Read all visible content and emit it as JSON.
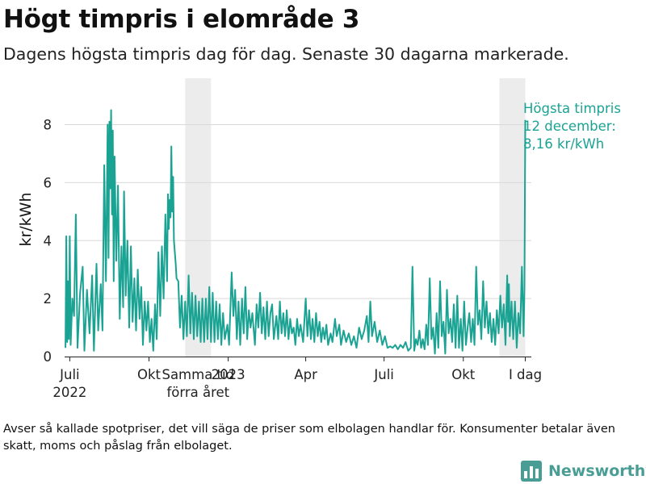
{
  "title": "Högt timpris i elområde 3",
  "subtitle": "Dagens högsta timpris dag för dag. Senaste 30 dagarna markerade.",
  "footnote": "Avser så kallade spotpriser, det vill säga de priser som elbolagen handlar för. Konsumenter betalar även skatt, moms och påslag från elbolaget.",
  "brand": {
    "name": "Newsworthy",
    "icon": "bar-chart-logo-icon"
  },
  "colors": {
    "line": "#1aa393",
    "highlight": "#ececec",
    "grid": "#d9d9d9",
    "brand": "#4a9d95"
  },
  "chart_data": {
    "type": "line",
    "ylabel": "kr/kWh",
    "ylim": [
      0,
      9.6
    ],
    "yticks": [
      0,
      2,
      4,
      6,
      8
    ],
    "grid": true,
    "xlim": [
      "2022-06-25",
      "2023-12-19"
    ],
    "xticks": [
      {
        "date": "2022-07-01",
        "label": "Juli",
        "sublabel": "2022"
      },
      {
        "date": "2022-10-01",
        "label": "Okt"
      },
      {
        "date": "2023-01-01",
        "label": "2023"
      },
      {
        "date": "2023-04-01",
        "label": "Apr"
      },
      {
        "date": "2023-07-01",
        "label": "Juli"
      },
      {
        "date": "2023-10-01",
        "label": "Okt"
      },
      {
        "date": "2023-12-12",
        "label": "I dag"
      }
    ],
    "highlight_periods": [
      {
        "start": "2022-11-12",
        "end": "2022-12-12",
        "label": "Samma tid",
        "sublabel": "förra året"
      },
      {
        "start": "2023-11-12",
        "end": "2023-12-12"
      }
    ],
    "annotation": {
      "date": "2023-12-12",
      "lines": [
        "Högsta timpris",
        "12 december:",
        "8,16 kr/kWh"
      ]
    },
    "series": [
      {
        "points": [
          [
            "2022-06-26",
            0.3
          ],
          [
            "2022-06-27",
            4.15
          ],
          [
            "2022-06-28",
            0.5
          ],
          [
            "2022-06-29",
            2.6
          ],
          [
            "2022-06-30",
            0.6
          ],
          [
            "2022-07-01",
            4.15
          ],
          [
            "2022-07-02",
            0.4
          ],
          [
            "2022-07-04",
            2.0
          ],
          [
            "2022-07-06",
            1.4
          ],
          [
            "2022-07-08",
            4.9
          ],
          [
            "2022-07-10",
            0.3
          ],
          [
            "2022-07-13",
            2.2
          ],
          [
            "2022-07-16",
            3.1
          ],
          [
            "2022-07-18",
            0.2
          ],
          [
            "2022-07-21",
            2.3
          ],
          [
            "2022-07-24",
            0.8
          ],
          [
            "2022-07-27",
            2.8
          ],
          [
            "2022-07-29",
            0.2
          ],
          [
            "2022-08-01",
            3.2
          ],
          [
            "2022-08-03",
            0.9
          ],
          [
            "2022-08-06",
            2.5
          ],
          [
            "2022-08-08",
            0.9
          ],
          [
            "2022-08-10",
            6.6
          ],
          [
            "2022-08-12",
            2.6
          ],
          [
            "2022-08-14",
            8.0
          ],
          [
            "2022-08-15",
            3.4
          ],
          [
            "2022-08-16",
            8.1
          ],
          [
            "2022-08-17",
            5.8
          ],
          [
            "2022-08-18",
            8.5
          ],
          [
            "2022-08-19",
            4.9
          ],
          [
            "2022-08-20",
            7.8
          ],
          [
            "2022-08-21",
            2.6
          ],
          [
            "2022-08-22",
            6.9
          ],
          [
            "2022-08-24",
            3.3
          ],
          [
            "2022-08-26",
            5.9
          ],
          [
            "2022-08-28",
            1.3
          ],
          [
            "2022-08-30",
            3.8
          ],
          [
            "2022-09-01",
            1.7
          ],
          [
            "2022-09-02",
            5.7
          ],
          [
            "2022-09-04",
            2.1
          ],
          [
            "2022-09-06",
            4.0
          ],
          [
            "2022-09-08",
            1.0
          ],
          [
            "2022-09-10",
            3.8
          ],
          [
            "2022-09-12",
            1.2
          ],
          [
            "2022-09-14",
            2.7
          ],
          [
            "2022-09-16",
            0.9
          ],
          [
            "2022-09-18",
            3.0
          ],
          [
            "2022-09-20",
            1.3
          ],
          [
            "2022-09-22",
            2.4
          ],
          [
            "2022-09-24",
            0.4
          ],
          [
            "2022-09-26",
            1.9
          ],
          [
            "2022-09-28",
            0.9
          ],
          [
            "2022-09-30",
            1.9
          ],
          [
            "2022-10-02",
            0.5
          ],
          [
            "2022-10-04",
            1.3
          ],
          [
            "2022-10-06",
            0.2
          ],
          [
            "2022-10-08",
            1.8
          ],
          [
            "2022-10-10",
            0.6
          ],
          [
            "2022-10-12",
            3.6
          ],
          [
            "2022-10-14",
            1.4
          ],
          [
            "2022-10-16",
            3.8
          ],
          [
            "2022-10-18",
            2.0
          ],
          [
            "2022-10-20",
            4.9
          ],
          [
            "2022-10-22",
            2.6
          ],
          [
            "2022-10-23",
            5.6
          ],
          [
            "2022-10-24",
            4.4
          ],
          [
            "2022-10-25",
            5.4
          ],
          [
            "2022-10-26",
            4.8
          ],
          [
            "2022-10-27",
            7.25
          ],
          [
            "2022-10-28",
            5.0
          ],
          [
            "2022-10-29",
            6.2
          ],
          [
            "2022-10-30",
            4.0
          ],
          [
            "2022-11-01",
            3.2
          ],
          [
            "2022-11-02",
            2.7
          ],
          [
            "2022-11-04",
            2.6
          ],
          [
            "2022-11-06",
            1.0
          ],
          [
            "2022-11-08",
            2.1
          ],
          [
            "2022-11-10",
            0.6
          ],
          [
            "2022-11-12",
            1.9
          ],
          [
            "2022-11-14",
            0.7
          ],
          [
            "2022-11-16",
            2.8
          ],
          [
            "2022-11-18",
            0.8
          ],
          [
            "2022-11-20",
            2.2
          ],
          [
            "2022-11-22",
            0.6
          ],
          [
            "2022-11-24",
            2.1
          ],
          [
            "2022-11-26",
            0.7
          ],
          [
            "2022-11-28",
            1.9
          ],
          [
            "2022-11-30",
            0.5
          ],
          [
            "2022-12-02",
            2.0
          ],
          [
            "2022-12-04",
            0.5
          ],
          [
            "2022-12-06",
            2.0
          ],
          [
            "2022-12-08",
            0.6
          ],
          [
            "2022-12-10",
            2.4
          ],
          [
            "2022-12-12",
            0.5
          ],
          [
            "2022-12-14",
            2.2
          ],
          [
            "2022-12-16",
            0.5
          ],
          [
            "2022-12-18",
            1.9
          ],
          [
            "2022-12-20",
            0.6
          ],
          [
            "2022-12-22",
            1.8
          ],
          [
            "2022-12-24",
            0.4
          ],
          [
            "2022-12-26",
            1.5
          ],
          [
            "2022-12-28",
            0.6
          ],
          [
            "2022-12-31",
            1.1
          ],
          [
            "2023-01-02",
            0.4
          ],
          [
            "2023-01-05",
            2.9
          ],
          [
            "2023-01-07",
            1.4
          ],
          [
            "2023-01-09",
            2.3
          ],
          [
            "2023-01-11",
            0.6
          ],
          [
            "2023-01-13",
            1.9
          ],
          [
            "2023-01-15",
            0.4
          ],
          [
            "2023-01-17",
            2.0
          ],
          [
            "2023-01-19",
            0.8
          ],
          [
            "2023-01-21",
            2.4
          ],
          [
            "2023-01-23",
            0.6
          ],
          [
            "2023-01-25",
            1.6
          ],
          [
            "2023-01-27",
            1.0
          ],
          [
            "2023-01-29",
            1.5
          ],
          [
            "2023-02-01",
            0.4
          ],
          [
            "2023-02-03",
            1.8
          ],
          [
            "2023-02-05",
            1.0
          ],
          [
            "2023-02-07",
            2.2
          ],
          [
            "2023-02-09",
            0.8
          ],
          [
            "2023-02-11",
            1.7
          ],
          [
            "2023-02-13",
            0.6
          ],
          [
            "2023-02-15",
            1.9
          ],
          [
            "2023-02-17",
            0.7
          ],
          [
            "2023-02-19",
            1.5
          ],
          [
            "2023-02-21",
            1.8
          ],
          [
            "2023-02-23",
            0.6
          ],
          [
            "2023-02-26",
            1.4
          ],
          [
            "2023-02-28",
            0.6
          ],
          [
            "2023-03-02",
            1.9
          ],
          [
            "2023-03-04",
            0.8
          ],
          [
            "2023-03-06",
            1.5
          ],
          [
            "2023-03-08",
            0.7
          ],
          [
            "2023-03-10",
            1.6
          ],
          [
            "2023-03-12",
            0.6
          ],
          [
            "2023-03-14",
            1.3
          ],
          [
            "2023-03-16",
            0.8
          ],
          [
            "2023-03-18",
            1.0
          ],
          [
            "2023-03-20",
            0.4
          ],
          [
            "2023-03-22",
            1.3
          ],
          [
            "2023-03-24",
            0.7
          ],
          [
            "2023-03-26",
            1.1
          ],
          [
            "2023-03-29",
            0.5
          ],
          [
            "2023-04-01",
            2.0
          ],
          [
            "2023-04-03",
            0.7
          ],
          [
            "2023-04-05",
            1.6
          ],
          [
            "2023-04-07",
            0.6
          ],
          [
            "2023-04-09",
            1.3
          ],
          [
            "2023-04-11",
            0.5
          ],
          [
            "2023-04-13",
            1.5
          ],
          [
            "2023-04-15",
            0.7
          ],
          [
            "2023-04-17",
            1.2
          ],
          [
            "2023-04-19",
            0.5
          ],
          [
            "2023-04-21",
            1.0
          ],
          [
            "2023-04-23",
            0.6
          ],
          [
            "2023-04-25",
            1.1
          ],
          [
            "2023-04-27",
            0.4
          ],
          [
            "2023-04-30",
            0.8
          ],
          [
            "2023-05-02",
            0.5
          ],
          [
            "2023-05-05",
            1.3
          ],
          [
            "2023-05-07",
            0.7
          ],
          [
            "2023-05-10",
            1.1
          ],
          [
            "2023-05-12",
            0.4
          ],
          [
            "2023-05-15",
            0.9
          ],
          [
            "2023-05-18",
            0.5
          ],
          [
            "2023-05-21",
            0.8
          ],
          [
            "2023-05-24",
            0.4
          ],
          [
            "2023-05-27",
            0.7
          ],
          [
            "2023-05-30",
            0.3
          ],
          [
            "2023-06-02",
            1.0
          ],
          [
            "2023-06-05",
            0.6
          ],
          [
            "2023-06-08",
            0.9
          ],
          [
            "2023-06-11",
            1.4
          ],
          [
            "2023-06-13",
            0.5
          ],
          [
            "2023-06-15",
            1.9
          ],
          [
            "2023-06-17",
            0.7
          ],
          [
            "2023-06-20",
            1.2
          ],
          [
            "2023-06-23",
            0.5
          ],
          [
            "2023-06-26",
            0.9
          ],
          [
            "2023-06-29",
            0.4
          ],
          [
            "2023-07-02",
            0.7
          ],
          [
            "2023-07-05",
            0.3
          ],
          [
            "2023-07-08",
            0.35
          ],
          [
            "2023-07-11",
            0.3
          ],
          [
            "2023-07-14",
            0.4
          ],
          [
            "2023-07-17",
            0.25
          ],
          [
            "2023-07-20",
            0.4
          ],
          [
            "2023-07-23",
            0.3
          ],
          [
            "2023-07-26",
            0.5
          ],
          [
            "2023-07-29",
            0.2
          ],
          [
            "2023-08-01",
            0.3
          ],
          [
            "2023-08-03",
            3.1
          ],
          [
            "2023-08-05",
            0.2
          ],
          [
            "2023-08-07",
            0.6
          ],
          [
            "2023-08-09",
            0.4
          ],
          [
            "2023-08-11",
            0.9
          ],
          [
            "2023-08-13",
            0.3
          ],
          [
            "2023-08-15",
            0.6
          ],
          [
            "2023-08-17",
            0.25
          ],
          [
            "2023-08-19",
            1.1
          ],
          [
            "2023-08-21",
            0.4
          ],
          [
            "2023-08-23",
            2.7
          ],
          [
            "2023-08-25",
            0.6
          ],
          [
            "2023-08-27",
            1.0
          ],
          [
            "2023-08-29",
            0.1
          ],
          [
            "2023-08-31",
            1.5
          ],
          [
            "2023-09-02",
            0.3
          ],
          [
            "2023-09-04",
            2.6
          ],
          [
            "2023-09-06",
            0.7
          ],
          [
            "2023-09-08",
            1.2
          ],
          [
            "2023-09-10",
            0.1
          ],
          [
            "2023-09-12",
            2.3
          ],
          [
            "2023-09-14",
            0.8
          ],
          [
            "2023-09-16",
            1.3
          ],
          [
            "2023-09-18",
            0.5
          ],
          [
            "2023-09-20",
            1.8
          ],
          [
            "2023-09-22",
            0.3
          ],
          [
            "2023-09-24",
            2.1
          ],
          [
            "2023-09-26",
            0.3
          ],
          [
            "2023-09-28",
            1.3
          ],
          [
            "2023-09-30",
            0.2
          ],
          [
            "2023-10-02",
            1.9
          ],
          [
            "2023-10-04",
            0.4
          ],
          [
            "2023-10-06",
            1.0
          ],
          [
            "2023-10-08",
            1.5
          ],
          [
            "2023-10-10",
            0.5
          ],
          [
            "2023-10-12",
            1.3
          ],
          [
            "2023-10-14",
            0.4
          ],
          [
            "2023-10-16",
            3.1
          ],
          [
            "2023-10-18",
            1.1
          ],
          [
            "2023-10-20",
            1.6
          ],
          [
            "2023-10-22",
            0.6
          ],
          [
            "2023-10-24",
            2.6
          ],
          [
            "2023-10-26",
            1.0
          ],
          [
            "2023-10-28",
            1.9
          ],
          [
            "2023-10-30",
            0.8
          ],
          [
            "2023-11-01",
            1.5
          ],
          [
            "2023-11-03",
            0.5
          ],
          [
            "2023-11-05",
            1.3
          ],
          [
            "2023-11-07",
            0.4
          ],
          [
            "2023-11-09",
            1.6
          ],
          [
            "2023-11-11",
            0.8
          ],
          [
            "2023-11-13",
            2.1
          ],
          [
            "2023-11-15",
            1.0
          ],
          [
            "2023-11-17",
            1.8
          ],
          [
            "2023-11-19",
            0.4
          ],
          [
            "2023-11-21",
            2.8
          ],
          [
            "2023-11-22",
            1.2
          ],
          [
            "2023-11-23",
            2.5
          ],
          [
            "2023-11-24",
            0.7
          ],
          [
            "2023-11-26",
            1.9
          ],
          [
            "2023-11-28",
            0.6
          ],
          [
            "2023-11-30",
            1.9
          ],
          [
            "2023-12-02",
            0.3
          ],
          [
            "2023-12-04",
            1.5
          ],
          [
            "2023-12-06",
            0.8
          ],
          [
            "2023-12-08",
            3.1
          ],
          [
            "2023-12-10",
            0.7
          ],
          [
            "2023-12-11",
            2.4
          ],
          [
            "2023-12-12",
            8.16
          ]
        ]
      }
    ]
  }
}
